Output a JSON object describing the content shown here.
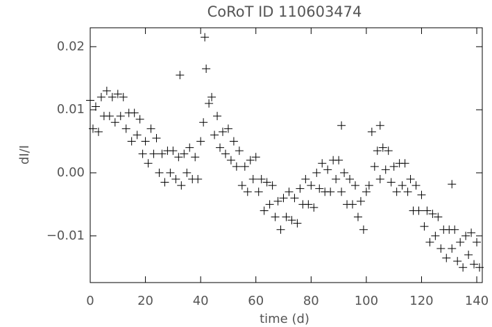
{
  "chart_data": {
    "type": "scatter",
    "title": "CoRoT ID 110603474",
    "x_label": "time (d)",
    "y_label": "dI/I",
    "color": "#000000",
    "marker": "+",
    "x": [
      0,
      1,
      2,
      3,
      4,
      5,
      6,
      7,
      8,
      9,
      10,
      11,
      12,
      13,
      14,
      15,
      16,
      17,
      18,
      19,
      20,
      21,
      22,
      23,
      24,
      25,
      26,
      27,
      28,
      29,
      30,
      31,
      32,
      33,
      34,
      35,
      36,
      37,
      38,
      39,
      40,
      41,
      42,
      43,
      44,
      45,
      46,
      47,
      48,
      49,
      50,
      51,
      52,
      53,
      54,
      55,
      56,
      57,
      58,
      59,
      60,
      61,
      62,
      63,
      64,
      65,
      66,
      67,
      68,
      69,
      70,
      71,
      72,
      73,
      74,
      75,
      76,
      77,
      78,
      79,
      80,
      81,
      82,
      83,
      84,
      85,
      86,
      87,
      88,
      89,
      90,
      91,
      92,
      93,
      94,
      95,
      96,
      97,
      98,
      99,
      100,
      101,
      102,
      103,
      104,
      105,
      106,
      107,
      108,
      109,
      110,
      111,
      112,
      113,
      114,
      115,
      116,
      117,
      118,
      119,
      120,
      121,
      122,
      123,
      124,
      125,
      126,
      127,
      128,
      129,
      130,
      131,
      132,
      133,
      134,
      135,
      136,
      137,
      138,
      139,
      140,
      141,
      32.5,
      41.5,
      131,
      91,
      105
    ],
    "values": [
      0.0115,
      0.007,
      0.0105,
      0.0065,
      0.012,
      0.009,
      0.013,
      0.009,
      0.012,
      0.008,
      0.0125,
      0.009,
      0.012,
      0.007,
      0.0095,
      0.005,
      0.0095,
      0.006,
      0.0085,
      0.003,
      0.005,
      0.0015,
      0.007,
      0.003,
      0.0055,
      0,
      0.003,
      -0.0015,
      0.0035,
      0,
      0.0035,
      -0.001,
      0.0025,
      -0.002,
      0.003,
      0,
      0.004,
      -0.001,
      0.0025,
      -0.001,
      0.005,
      0.008,
      0.0165,
      0.011,
      0.012,
      0.006,
      0.009,
      0.004,
      0.0065,
      0.003,
      0.007,
      0.002,
      0.005,
      0.001,
      0.0035,
      -0.002,
      0.001,
      -0.003,
      0.002,
      -0.001,
      0.0025,
      -0.003,
      -0.001,
      -0.006,
      -0.0015,
      -0.005,
      -0.002,
      -0.007,
      -0.0045,
      -0.009,
      -0.004,
      -0.007,
      -0.003,
      -0.0075,
      -0.004,
      -0.008,
      -0.0025,
      -0.005,
      -0.001,
      -0.005,
      -0.002,
      -0.0055,
      0,
      -0.0025,
      0.0015,
      -0.003,
      0.0005,
      -0.003,
      0.002,
      -0.001,
      0.002,
      -0.003,
      0,
      -0.005,
      -0.001,
      -0.005,
      -0.002,
      -0.007,
      -0.0045,
      -0.009,
      -0.003,
      -0.002,
      0.0065,
      0.001,
      0.0035,
      -0.001,
      0.004,
      0.0005,
      0.0035,
      -0.0015,
      0.001,
      -0.003,
      0.0015,
      -0.002,
      0.0015,
      -0.003,
      -0.001,
      -0.006,
      -0.002,
      -0.006,
      -0.0035,
      -0.0085,
      -0.006,
      -0.011,
      -0.0065,
      -0.01,
      -0.007,
      -0.012,
      -0.009,
      -0.0135,
      -0.009,
      -0.012,
      -0.009,
      -0.014,
      -0.011,
      -0.015,
      -0.01,
      -0.013,
      -0.0095,
      -0.0145,
      -0.011,
      -0.015,
      0.0155,
      0.0215,
      -0.0018,
      0.0075,
      0.0075
    ],
    "xlim": [
      0,
      142
    ],
    "xticks": [
      0,
      20,
      40,
      60,
      80,
      100,
      120,
      140
    ],
    "ylim": [
      -0.0174,
      0.023
    ],
    "yticks": [
      {
        "value": -0.01,
        "label": "−0.01"
      },
      {
        "value": 0,
        "label": "0.00"
      },
      0.01,
      0.02
    ]
  }
}
